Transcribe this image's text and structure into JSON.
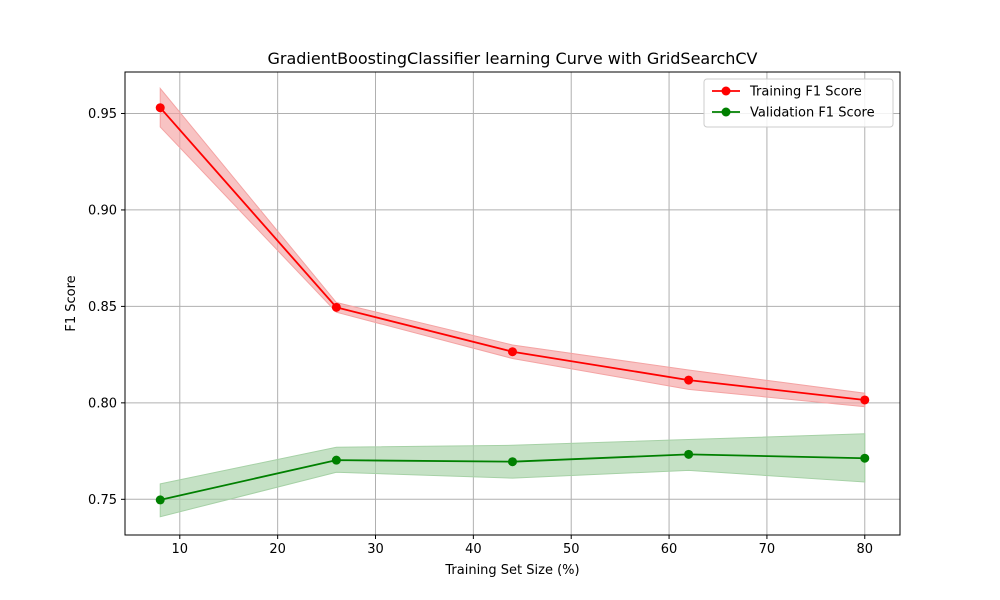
{
  "chart_data": {
    "type": "line",
    "title": "GradientBoostingClassifier learning Curve with GridSearchCV",
    "xlabel": "Training Set Size (%)",
    "ylabel": "F1 Score",
    "xlim": [
      4.4,
      83.6
    ],
    "ylim": [
      0.7315,
      0.9715
    ],
    "xticks": [
      10,
      20,
      30,
      40,
      50,
      60,
      70,
      80
    ],
    "yticks": [
      0.75,
      0.8,
      0.85,
      0.9,
      0.95
    ],
    "xtick_labels": [
      "10",
      "20",
      "30",
      "40",
      "50",
      "60",
      "70",
      "80"
    ],
    "ytick_labels": [
      "0.75",
      "0.80",
      "0.85",
      "0.90",
      "0.95"
    ],
    "grid": true,
    "legend_position": "top-right",
    "x": [
      8,
      26,
      44,
      62,
      80
    ],
    "series": [
      {
        "name": "Training F1 Score",
        "color": "#ff0000",
        "band_color": "#f4a3a3",
        "values": [
          0.953,
          0.8495,
          0.8265,
          0.8118,
          0.8015
        ],
        "lower": [
          0.943,
          0.847,
          0.823,
          0.807,
          0.798
        ],
        "upper": [
          0.963,
          0.852,
          0.83,
          0.817,
          0.805
        ]
      },
      {
        "name": "Validation F1 Score",
        "color": "#008000",
        "band_color": "#a6d1a6",
        "values": [
          0.7497,
          0.7703,
          0.7695,
          0.7733,
          0.7713
        ],
        "lower": [
          0.741,
          0.764,
          0.761,
          0.765,
          0.759
        ],
        "upper": [
          0.758,
          0.777,
          0.778,
          0.781,
          0.784
        ]
      }
    ]
  }
}
